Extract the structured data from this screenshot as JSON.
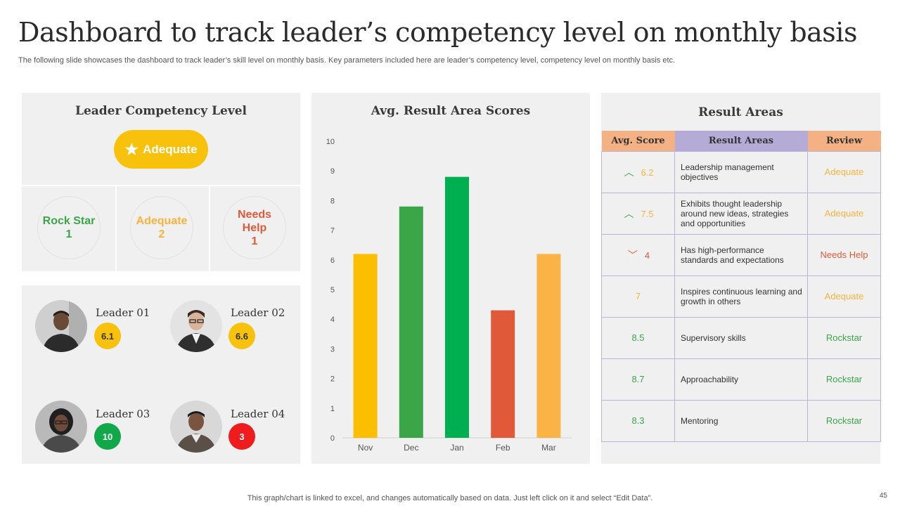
{
  "header": {
    "title": "Dashboard to track leader’s competency level on monthly basis",
    "subtitle": "The following slide showcases the dashboard to track leader’s skill level on monthly basis. Key parameters included here are leader’s competency level, competency level on monthly basis etc."
  },
  "competency": {
    "title": "Leader Competency Level",
    "overall": "Adequate",
    "categories": [
      {
        "label": "Rock Star",
        "count": "1",
        "color": "#3aa648"
      },
      {
        "label": "Adequate",
        "count": "2",
        "color": "#f9b33d"
      },
      {
        "label": "Needs Help",
        "count": "1",
        "color": "#e05a3a"
      }
    ]
  },
  "leaders": [
    {
      "name": "Leader 01",
      "score": "6.1",
      "color": "#f8c10c"
    },
    {
      "name": "Leader 02",
      "score": "6.6",
      "color": "#f8c10c"
    },
    {
      "name": "Leader 03",
      "score": "10",
      "color": "#11a84a"
    },
    {
      "name": "Leader 04",
      "score": "3",
      "color": "#ee1c1c"
    }
  ],
  "chart_data": {
    "type": "bar",
    "title": "Avg. Result Area Scores",
    "categories": [
      "Nov",
      "Dec",
      "Jan",
      "Feb",
      "Mar"
    ],
    "values": [
      6.2,
      7.8,
      8.8,
      4.3,
      6.2
    ],
    "colors": [
      "#fbbf00",
      "#3aa648",
      "#00b050",
      "#e05a3a",
      "#fbb346"
    ],
    "ylim": [
      0,
      10
    ],
    "yticks": [
      0,
      1,
      2,
      3,
      4,
      5,
      6,
      7,
      8,
      9,
      10
    ],
    "xlabel": "",
    "ylabel": ""
  },
  "result_areas": {
    "title": "Result Areas",
    "headers": [
      "Avg. Score",
      "Result Areas",
      "Review"
    ],
    "header_colors": [
      "#f4b183",
      "#b4acd6",
      "#f4b183"
    ],
    "rows": [
      {
        "trend": "up",
        "score": "6.2",
        "area": "Leadership management objectives",
        "review": "Adequate",
        "color": "#f9b33d",
        "trend_color": "#3aa648"
      },
      {
        "trend": "up",
        "score": "7.5",
        "area": "Exhibits thought leadership around new ideas, strategies and opportunities",
        "review": "Adequate",
        "color": "#f9b33d",
        "trend_color": "#3aa648"
      },
      {
        "trend": "down",
        "score": "4",
        "area": "Has high-performance standards and expectations",
        "review": "Needs Help",
        "color": "#e05a3a",
        "trend_color": "#e05a3a"
      },
      {
        "trend": "",
        "score": "7",
        "area": "Inspires continuous learning and growth in others",
        "review": "Adequate",
        "color": "#f9b33d",
        "trend_color": ""
      },
      {
        "trend": "",
        "score": "8.5",
        "area": "Supervisory skills",
        "review": "Rockstar",
        "color": "#3aa648",
        "trend_color": ""
      },
      {
        "trend": "",
        "score": "8.7",
        "area": "Approachability",
        "review": "Rockstar",
        "color": "#3aa648",
        "trend_color": ""
      },
      {
        "trend": "",
        "score": "8.3",
        "area": "Mentoring",
        "review": "Rockstar",
        "color": "#3aa648",
        "trend_color": ""
      }
    ]
  },
  "footer": {
    "note": "This graph/chart is linked to excel,  and changes automatically based on data. Just left click on it and select “Edit Data”.",
    "page_number": "45"
  }
}
